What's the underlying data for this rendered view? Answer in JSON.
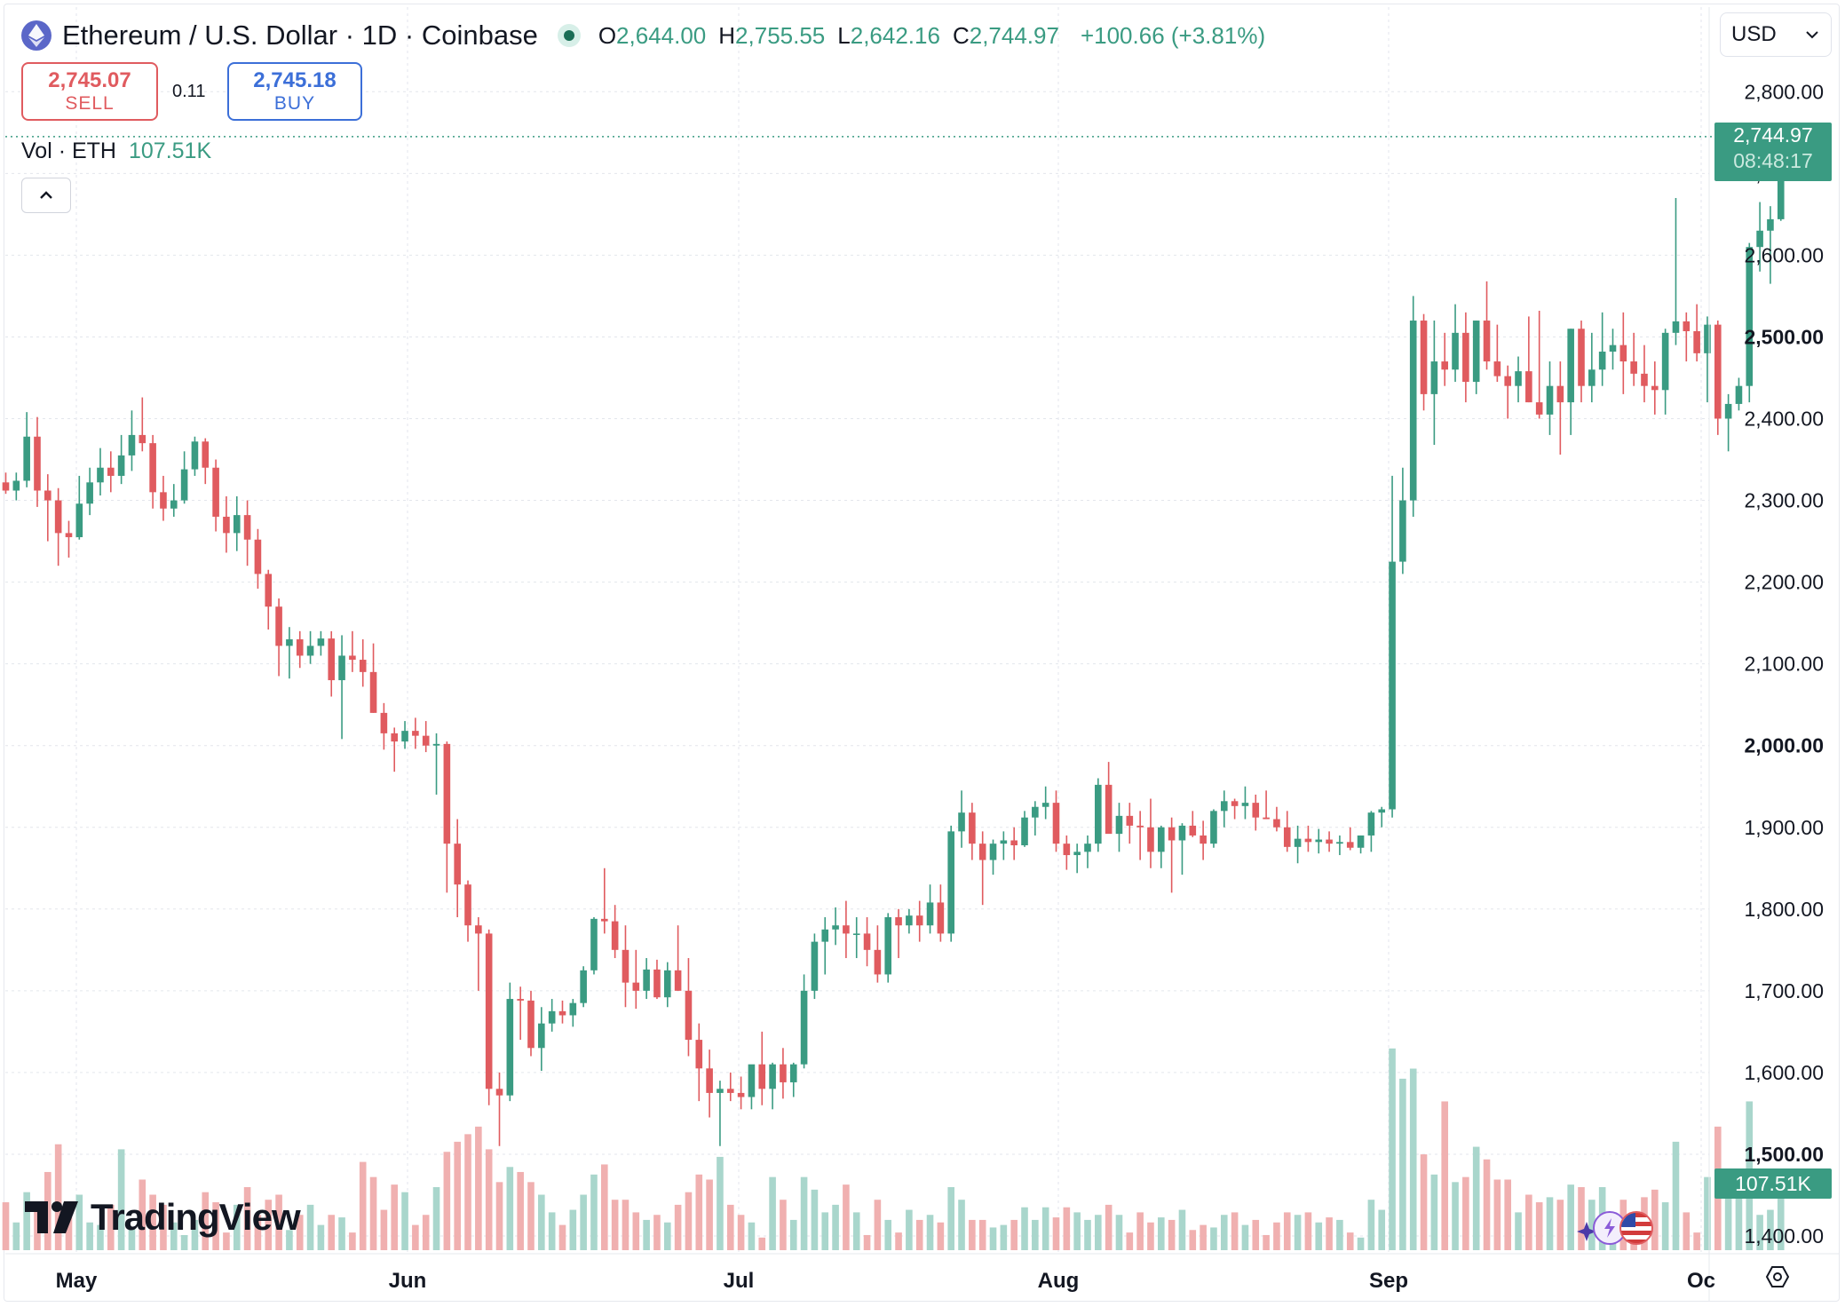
{
  "header": {
    "title": "Ethereum / U.S. Dollar · 1D · Coinbase",
    "ohlc": {
      "o_label": "O",
      "o": "2,644.00",
      "h_label": "H",
      "h": "2,755.55",
      "l_label": "L",
      "l": "2,642.16",
      "c_label": "C",
      "c": "2,744.97",
      "change": "+100.66 (+3.81%)"
    }
  },
  "currency": "USD",
  "trade": {
    "sell_price": "2,745.07",
    "sell_label": "SELL",
    "spread": "0.11",
    "buy_price": "2,745.18",
    "buy_label": "BUY"
  },
  "volume_legend": {
    "label": "Vol · ETH",
    "value": "107.51K"
  },
  "last_price": {
    "value": "2,744.97",
    "countdown": "08:48:17"
  },
  "volume_tag": "107.51K",
  "brand": "TradingView",
  "colors": {
    "up": "#3a9b82",
    "down": "#e05b5f",
    "up_vol": "#a9d6cc",
    "down_vol": "#f0b0b0",
    "grid": "#e3e6ec"
  },
  "chart_data": {
    "type": "candlestick",
    "title": "Ethereum / U.S. Dollar · 1D · Coinbase",
    "ylim": [
      1400,
      2830
    ],
    "y_ticks": [
      "1,400.00",
      "1,500.00",
      "1,600.00",
      "1,700.00",
      "1,800.00",
      "1,900.00",
      "2,000.00",
      "2,100.00",
      "2,200.00",
      "2,300.00",
      "2,400.00",
      "2,500.00",
      "2,600.00",
      "2,700.00",
      "2,800.00"
    ],
    "y_bold_ticks": [
      "1,500.00",
      "2,000.00",
      "2,500.00"
    ],
    "x_ticks": [
      "May",
      "Jun",
      "Jul",
      "Aug",
      "Sep",
      "Oc"
    ],
    "candles": [
      [
        2322,
        2334,
        2308,
        2312,
        38
      ],
      [
        2312,
        2334,
        2300,
        2324,
        22
      ],
      [
        2324,
        2408,
        2316,
        2378,
        46
      ],
      [
        2378,
        2402,
        2292,
        2312,
        32
      ],
      [
        2312,
        2332,
        2250,
        2300,
        62
      ],
      [
        2300,
        2315,
        2220,
        2260,
        84
      ],
      [
        2260,
        2275,
        2230,
        2255,
        28
      ],
      [
        2255,
        2330,
        2252,
        2296,
        44
      ],
      [
        2296,
        2340,
        2282,
        2322,
        22
      ],
      [
        2322,
        2364,
        2306,
        2340,
        20
      ],
      [
        2340,
        2360,
        2310,
        2330,
        36
      ],
      [
        2330,
        2380,
        2320,
        2355,
        80
      ],
      [
        2355,
        2410,
        2336,
        2380,
        18
      ],
      [
        2380,
        2426,
        2360,
        2370,
        56
      ],
      [
        2370,
        2380,
        2290,
        2310,
        44
      ],
      [
        2310,
        2330,
        2275,
        2290,
        36
      ],
      [
        2290,
        2320,
        2280,
        2300,
        22
      ],
      [
        2300,
        2360,
        2296,
        2338,
        12
      ],
      [
        2338,
        2378,
        2330,
        2372,
        24
      ],
      [
        2372,
        2376,
        2320,
        2340,
        46
      ],
      [
        2340,
        2350,
        2262,
        2280,
        38
      ],
      [
        2280,
        2305,
        2236,
        2260,
        14
      ],
      [
        2260,
        2305,
        2238,
        2282,
        36
      ],
      [
        2282,
        2300,
        2220,
        2252,
        50
      ],
      [
        2252,
        2265,
        2192,
        2210,
        28
      ],
      [
        2210,
        2215,
        2142,
        2170,
        40
      ],
      [
        2170,
        2180,
        2085,
        2122,
        44
      ],
      [
        2122,
        2145,
        2082,
        2130,
        16
      ],
      [
        2130,
        2140,
        2095,
        2110,
        28
      ],
      [
        2110,
        2140,
        2100,
        2122,
        36
      ],
      [
        2122,
        2140,
        2110,
        2131,
        20
      ],
      [
        2131,
        2140,
        2060,
        2080,
        28
      ],
      [
        2080,
        2135,
        2008,
        2110,
        26
      ],
      [
        2110,
        2140,
        2090,
        2105,
        14
      ],
      [
        2105,
        2130,
        2072,
        2090,
        70
      ],
      [
        2090,
        2125,
        2040,
        2040,
        58
      ],
      [
        2040,
        2052,
        1995,
        2015,
        32
      ],
      [
        2015,
        2022,
        1968,
        2005,
        52
      ],
      [
        2005,
        2030,
        1996,
        2018,
        46
      ],
      [
        2018,
        2034,
        1996,
        2012,
        20
      ],
      [
        2012,
        2030,
        1992,
        2000,
        28
      ],
      [
        2000,
        2015,
        1940,
        2002,
        50
      ],
      [
        2002,
        2005,
        1820,
        1880,
        78
      ],
      [
        1880,
        1910,
        1790,
        1830,
        86
      ],
      [
        1830,
        1835,
        1760,
        1780,
        92
      ],
      [
        1780,
        1790,
        1700,
        1770,
        98
      ],
      [
        1770,
        1775,
        1560,
        1580,
        80
      ],
      [
        1580,
        1600,
        1510,
        1572,
        54
      ],
      [
        1572,
        1710,
        1565,
        1690,
        66
      ],
      [
        1690,
        1705,
        1640,
        1688,
        62
      ],
      [
        1688,
        1700,
        1620,
        1630,
        54
      ],
      [
        1630,
        1680,
        1602,
        1660,
        44
      ],
      [
        1660,
        1690,
        1650,
        1675,
        30
      ],
      [
        1675,
        1688,
        1660,
        1670,
        20
      ],
      [
        1670,
        1690,
        1656,
        1685,
        32
      ],
      [
        1685,
        1730,
        1680,
        1725,
        44
      ],
      [
        1725,
        1790,
        1720,
        1788,
        60
      ],
      [
        1788,
        1850,
        1770,
        1785,
        68
      ],
      [
        1785,
        1805,
        1740,
        1750,
        40
      ],
      [
        1750,
        1780,
        1680,
        1710,
        40
      ],
      [
        1710,
        1750,
        1678,
        1700,
        30
      ],
      [
        1700,
        1740,
        1690,
        1726,
        24
      ],
      [
        1726,
        1738,
        1690,
        1692,
        28
      ],
      [
        1692,
        1735,
        1680,
        1725,
        22
      ],
      [
        1725,
        1780,
        1700,
        1700,
        36
      ],
      [
        1700,
        1740,
        1620,
        1640,
        46
      ],
      [
        1640,
        1660,
        1565,
        1605,
        60
      ],
      [
        1605,
        1628,
        1545,
        1575,
        56
      ],
      [
        1575,
        1590,
        1510,
        1580,
        74
      ],
      [
        1580,
        1600,
        1565,
        1575,
        36
      ],
      [
        1575,
        1595,
        1555,
        1570,
        28
      ],
      [
        1570,
        1600,
        1555,
        1610,
        22
      ],
      [
        1610,
        1650,
        1560,
        1580,
        10
      ],
      [
        1580,
        1612,
        1555,
        1610,
        58
      ],
      [
        1610,
        1630,
        1568,
        1588,
        40
      ],
      [
        1588,
        1612,
        1570,
        1610,
        24
      ],
      [
        1610,
        1720,
        1605,
        1700,
        58
      ],
      [
        1700,
        1770,
        1690,
        1760,
        48
      ],
      [
        1760,
        1790,
        1720,
        1775,
        30
      ],
      [
        1775,
        1802,
        1756,
        1780,
        36
      ],
      [
        1780,
        1810,
        1740,
        1770,
        52
      ],
      [
        1770,
        1790,
        1740,
        1770,
        30
      ],
      [
        1770,
        1790,
        1730,
        1750,
        12
      ],
      [
        1750,
        1780,
        1710,
        1720,
        40
      ],
      [
        1720,
        1795,
        1710,
        1790,
        24
      ],
      [
        1790,
        1800,
        1740,
        1780,
        14
      ],
      [
        1780,
        1800,
        1770,
        1792,
        32
      ],
      [
        1792,
        1810,
        1760,
        1780,
        24
      ],
      [
        1780,
        1830,
        1770,
        1808,
        28
      ],
      [
        1808,
        1830,
        1760,
        1770,
        22
      ],
      [
        1770,
        1902,
        1760,
        1895,
        50
      ],
      [
        1895,
        1945,
        1875,
        1918,
        40
      ],
      [
        1918,
        1930,
        1860,
        1880,
        24
      ],
      [
        1880,
        1895,
        1805,
        1860,
        24
      ],
      [
        1860,
        1885,
        1842,
        1880,
        18
      ],
      [
        1880,
        1895,
        1860,
        1884,
        20
      ],
      [
        1884,
        1900,
        1860,
        1878,
        24
      ],
      [
        1878,
        1920,
        1876,
        1912,
        34
      ],
      [
        1912,
        1932,
        1890,
        1925,
        24
      ],
      [
        1925,
        1950,
        1910,
        1930,
        34
      ],
      [
        1930,
        1945,
        1870,
        1880,
        26
      ],
      [
        1880,
        1890,
        1848,
        1866,
        34
      ],
      [
        1866,
        1880,
        1844,
        1870,
        30
      ],
      [
        1870,
        1890,
        1850,
        1880,
        24
      ],
      [
        1880,
        1960,
        1870,
        1952,
        28
      ],
      [
        1952,
        1980,
        1895,
        1892,
        36
      ],
      [
        1892,
        1930,
        1870,
        1914,
        28
      ],
      [
        1914,
        1930,
        1880,
        1902,
        14
      ],
      [
        1902,
        1920,
        1860,
        1900,
        30
      ],
      [
        1900,
        1935,
        1850,
        1870,
        22
      ],
      [
        1870,
        1902,
        1850,
        1900,
        26
      ],
      [
        1900,
        1912,
        1820,
        1884,
        24
      ],
      [
        1884,
        1905,
        1842,
        1902,
        32
      ],
      [
        1902,
        1920,
        1888,
        1890,
        16
      ],
      [
        1890,
        1908,
        1860,
        1880,
        20
      ],
      [
        1880,
        1922,
        1875,
        1920,
        18
      ],
      [
        1920,
        1945,
        1900,
        1932,
        28
      ],
      [
        1932,
        1935,
        1910,
        1926,
        30
      ],
      [
        1926,
        1950,
        1910,
        1930,
        20
      ],
      [
        1930,
        1940,
        1896,
        1912,
        24
      ],
      [
        1912,
        1945,
        1910,
        1910,
        12
      ],
      [
        1910,
        1925,
        1895,
        1900,
        22
      ],
      [
        1900,
        1920,
        1870,
        1876,
        30
      ],
      [
        1876,
        1902,
        1856,
        1886,
        28
      ],
      [
        1886,
        1902,
        1870,
        1882,
        30
      ],
      [
        1882,
        1898,
        1868,
        1885,
        22
      ],
      [
        1885,
        1895,
        1870,
        1880,
        26
      ],
      [
        1880,
        1890,
        1866,
        1882,
        24
      ],
      [
        1882,
        1900,
        1872,
        1875,
        14
      ],
      [
        1875,
        1890,
        1868,
        1890,
        10
      ],
      [
        1890,
        1920,
        1870,
        1918,
        40
      ],
      [
        1918,
        1925,
        1900,
        1922,
        32
      ],
      [
        1922,
        2330,
        1912,
        2225,
        160
      ],
      [
        2225,
        2340,
        2210,
        2300,
        136
      ],
      [
        2300,
        2550,
        2280,
        2520,
        144
      ],
      [
        2520,
        2528,
        2410,
        2430,
        76
      ],
      [
        2430,
        2520,
        2368,
        2470,
        60
      ],
      [
        2470,
        2505,
        2440,
        2460,
        118
      ],
      [
        2460,
        2540,
        2445,
        2505,
        54
      ],
      [
        2505,
        2530,
        2420,
        2445,
        58
      ],
      [
        2445,
        2520,
        2430,
        2520,
        82
      ],
      [
        2520,
        2568,
        2460,
        2470,
        72
      ],
      [
        2470,
        2515,
        2445,
        2452,
        56
      ],
      [
        2452,
        2465,
        2400,
        2440,
        56
      ],
      [
        2440,
        2476,
        2420,
        2458,
        30
      ],
      [
        2458,
        2525,
        2420,
        2420,
        44
      ],
      [
        2420,
        2532,
        2400,
        2405,
        38
      ],
      [
        2405,
        2470,
        2380,
        2440,
        42
      ],
      [
        2440,
        2470,
        2356,
        2420,
        40
      ],
      [
        2420,
        2510,
        2380,
        2510,
        52
      ],
      [
        2510,
        2520,
        2420,
        2440,
        50
      ],
      [
        2440,
        2505,
        2420,
        2460,
        40
      ],
      [
        2460,
        2530,
        2440,
        2482,
        50
      ],
      [
        2482,
        2510,
        2460,
        2490,
        24
      ],
      [
        2490,
        2530,
        2430,
        2470,
        40
      ],
      [
        2470,
        2505,
        2440,
        2455,
        24
      ],
      [
        2455,
        2490,
        2420,
        2440,
        42
      ],
      [
        2440,
        2470,
        2405,
        2435,
        48
      ],
      [
        2435,
        2510,
        2405,
        2505,
        38
      ],
      [
        2505,
        2670,
        2490,
        2519,
        86
      ],
      [
        2519,
        2530,
        2470,
        2507,
        30
      ],
      [
        2507,
        2540,
        2470,
        2480,
        14
      ],
      [
        2480,
        2525,
        2420,
        2515,
        58
      ],
      [
        2515,
        2520,
        2380,
        2400,
        98
      ],
      [
        2400,
        2430,
        2360,
        2418,
        46
      ],
      [
        2418,
        2450,
        2410,
        2440,
        52
      ],
      [
        2440,
        2615,
        2420,
        2610,
        118
      ],
      [
        2610,
        2665,
        2580,
        2630,
        28
      ],
      [
        2630,
        2660,
        2565,
        2644,
        32
      ],
      [
        2644,
        2756,
        2642,
        2745,
        50
      ]
    ]
  }
}
